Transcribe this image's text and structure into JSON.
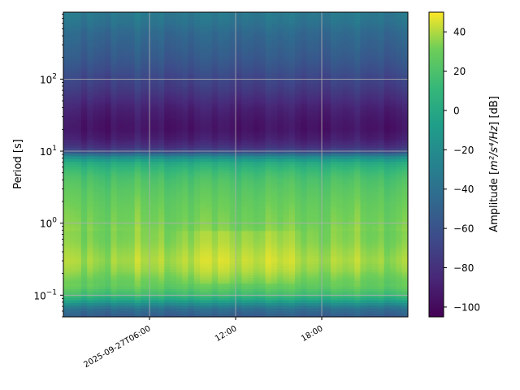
{
  "chart_data": {
    "type": "heatmap",
    "title": "",
    "xlabel": "",
    "ylabel": "Period [s]",
    "y_scale": "log",
    "ylim": [
      0.05,
      850
    ],
    "xlim": [
      "2025-09-27T00:00",
      "2025-09-28T00:00"
    ],
    "x_ticks": [
      {
        "time": "2025-09-27T06:00",
        "label": "2025-09-27T06:00"
      },
      {
        "time": "2025-09-27T12:00",
        "label": "12:00"
      },
      {
        "time": "2025-09-27T18:00",
        "label": "18:00"
      }
    ],
    "y_ticks": [
      {
        "value": 0.1,
        "mantissa": "10",
        "exp": "−1"
      },
      {
        "value": 1,
        "mantissa": "10",
        "exp": "0"
      },
      {
        "value": 10,
        "mantissa": "10",
        "exp": "1"
      },
      {
        "value": 100,
        "mantissa": "10",
        "exp": "2"
      }
    ],
    "grid": true,
    "colorbar": {
      "label_prefix": "Amplitude [",
      "label_math": "m²/s⁴/Hz",
      "label_suffix": "] [dB]",
      "range": [
        -105,
        50
      ],
      "ticks": [
        -100,
        -80,
        -60,
        -40,
        -20,
        0,
        20,
        40
      ],
      "colormap": "viridis"
    },
    "profile_period_s": [
      0.05,
      0.065,
      0.08,
      0.1,
      0.13,
      0.17,
      0.22,
      0.3,
      0.4,
      0.55,
      0.75,
      1.0,
      1.5,
      2.0,
      3.0,
      4.0,
      5.0,
      6.0,
      7.0,
      8.0,
      9.0,
      10.0,
      12.0,
      15.0,
      20.0,
      25.0,
      30.0,
      40.0,
      50.0,
      70.0,
      100.0,
      150.0,
      200.0,
      300.0,
      450.0,
      600.0,
      850.0
    ],
    "profile_amplitude_db": [
      -55,
      -40,
      -10,
      15,
      27,
      32,
      37,
      40,
      38,
      35,
      34,
      32,
      30,
      28,
      24,
      20,
      15,
      8,
      0,
      -15,
      -40,
      -68,
      -82,
      -90,
      -95,
      -94,
      -92,
      -88,
      -83,
      -75,
      -68,
      -60,
      -55,
      -50,
      -45,
      -38,
      -33
    ],
    "x_bins": 58
  }
}
